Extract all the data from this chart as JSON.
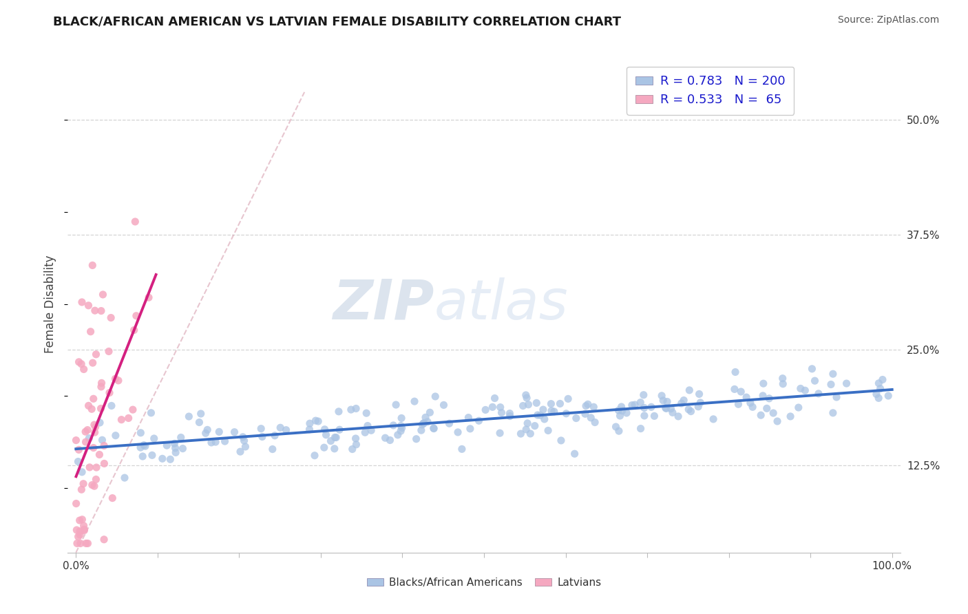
{
  "title": "BLACK/AFRICAN AMERICAN VS LATVIAN FEMALE DISABILITY CORRELATION CHART",
  "source_text": "Source: ZipAtlas.com",
  "ylabel": "Female Disability",
  "watermark_zip": "ZIP",
  "watermark_atlas": "atlas",
  "legend_entries": [
    {
      "label": "Blacks/African Americans",
      "R": 0.783,
      "N": 200,
      "color": "#aac4e4",
      "line_color": "#3a6fc4"
    },
    {
      "label": "Latvians",
      "R": 0.533,
      "N": 65,
      "color": "#f5a8c0",
      "line_color": "#d42080"
    }
  ],
  "right_yticks": [
    0.125,
    0.25,
    0.375,
    0.5
  ],
  "right_yticklabels": [
    "12.5%",
    "25.0%",
    "37.5%",
    "50.0%"
  ],
  "xlim": [
    -0.01,
    1.01
  ],
  "ylim": [
    0.03,
    0.57
  ],
  "blue_color": "#aac4e4",
  "pink_color": "#f5a8c0",
  "blue_line_color": "#3a6fc4",
  "pink_line_color": "#d42080",
  "ref_line_color": "#d8a0b0",
  "grid_color": "#d4d4d4",
  "title_color": "#1a1a1a",
  "source_color": "#555555",
  "watermark_color": "#c8d8ec",
  "legend_text_color": "#1a1acc"
}
